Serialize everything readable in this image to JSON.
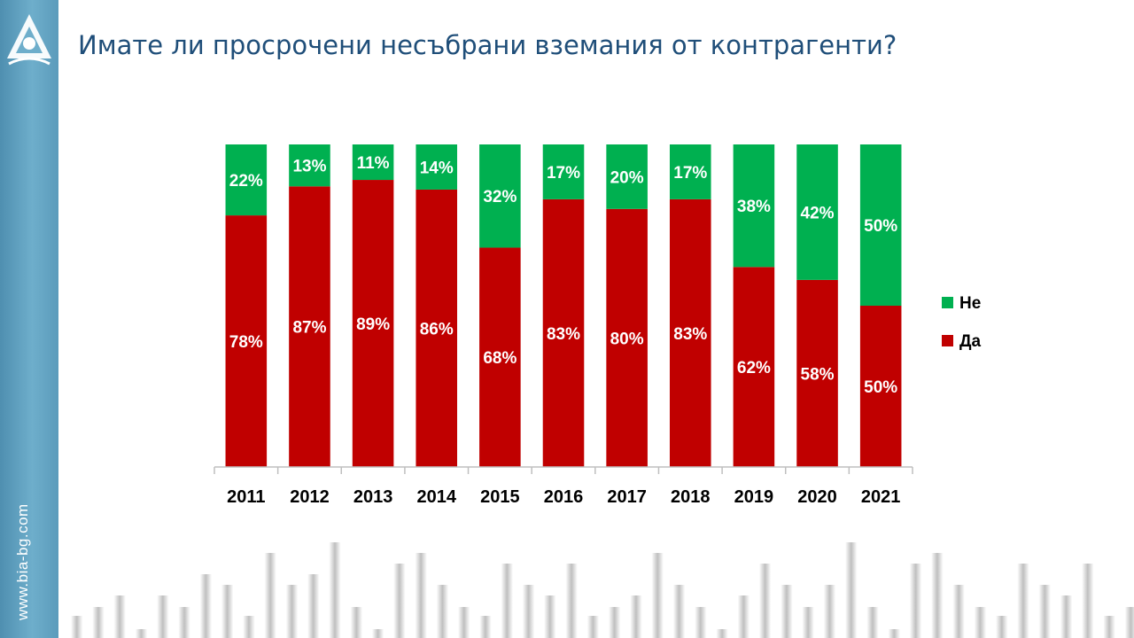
{
  "slide": {
    "title": "Имате ли просрочени несъбрани вземания от контрагенти?",
    "website": "www.bia-bg.com"
  },
  "colors": {
    "yes": "#c00000",
    "no": "#00b050",
    "sidebar": "#5b9bbb",
    "title": "#1f4e79"
  },
  "icons": {
    "logo": "bia-logo-icon"
  },
  "chart_data": {
    "type": "bar",
    "stacked": true,
    "percent": true,
    "categories": [
      "2011",
      "2012",
      "2013",
      "2014",
      "2015",
      "2016",
      "2017",
      "2018",
      "2019",
      "2020",
      "2021"
    ],
    "series": [
      {
        "name": "Да",
        "values": [
          78,
          87,
          89,
          86,
          68,
          83,
          80,
          83,
          62,
          58,
          50
        ]
      },
      {
        "name": "Не",
        "values": [
          22,
          13,
          11,
          14,
          32,
          17,
          20,
          17,
          38,
          42,
          50
        ]
      }
    ],
    "legend": [
      "Не",
      "Да"
    ],
    "legend_position": "right",
    "data_labels": true,
    "ylim": [
      0,
      100
    ],
    "grid": false
  }
}
